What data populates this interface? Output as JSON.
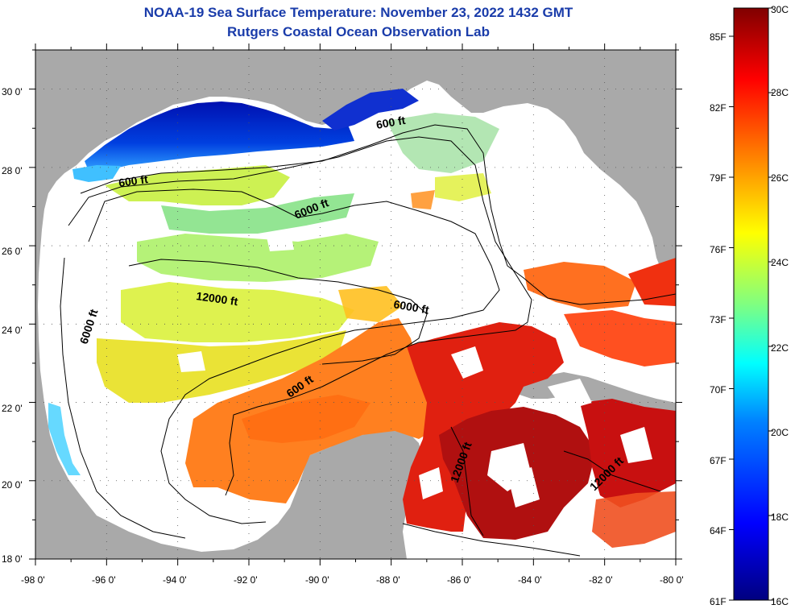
{
  "header": {
    "title": "NOAA-19 Sea Surface Temperature:  November 23, 2022 1432 GMT",
    "subtitle": "Rutgers Coastal Ocean Observation Lab"
  },
  "map": {
    "lon_range": [
      -98,
      -80
    ],
    "lat_range": [
      18,
      31
    ],
    "lon_labels": [
      "-98 0'",
      "-96 0'",
      "-94 0'",
      "-92 0'",
      "-90 0'",
      "-88 0'",
      "-86 0'",
      "-84 0'",
      "-82 0'",
      "-80 0'"
    ],
    "lat_labels": [
      "30 0'",
      "28 0'",
      "26 0'",
      "24 0'",
      "22 0'",
      "20 0'",
      "18 0'"
    ],
    "colors": {
      "land": "#a9a9a9",
      "cloud_no_data": "#ffffff",
      "grid": "#555555"
    },
    "contour_labels": [
      {
        "text": "600 ft"
      },
      {
        "text": "600 ft"
      },
      {
        "text": "6000 ft"
      },
      {
        "text": "12000 ft"
      },
      {
        "text": "6000 ft"
      },
      {
        "text": "6000 ft"
      },
      {
        "text": "600 ft"
      },
      {
        "text": "12000 ft"
      },
      {
        "text": "12000 ft"
      }
    ]
  },
  "colorbar": {
    "celsius_labels": [
      "30C",
      "28C",
      "26C",
      "24C",
      "22C",
      "20C",
      "18C",
      "16C"
    ],
    "fahrenheit_labels": [
      "85F",
      "82F",
      "79F",
      "76F",
      "73F",
      "70F",
      "67F",
      "64F",
      "61F"
    ],
    "colors": [
      "#000080",
      "#0000ff",
      "#0080ff",
      "#00ffff",
      "#80ff80",
      "#ffff00",
      "#ff8000",
      "#ff0000",
      "#800000"
    ]
  }
}
